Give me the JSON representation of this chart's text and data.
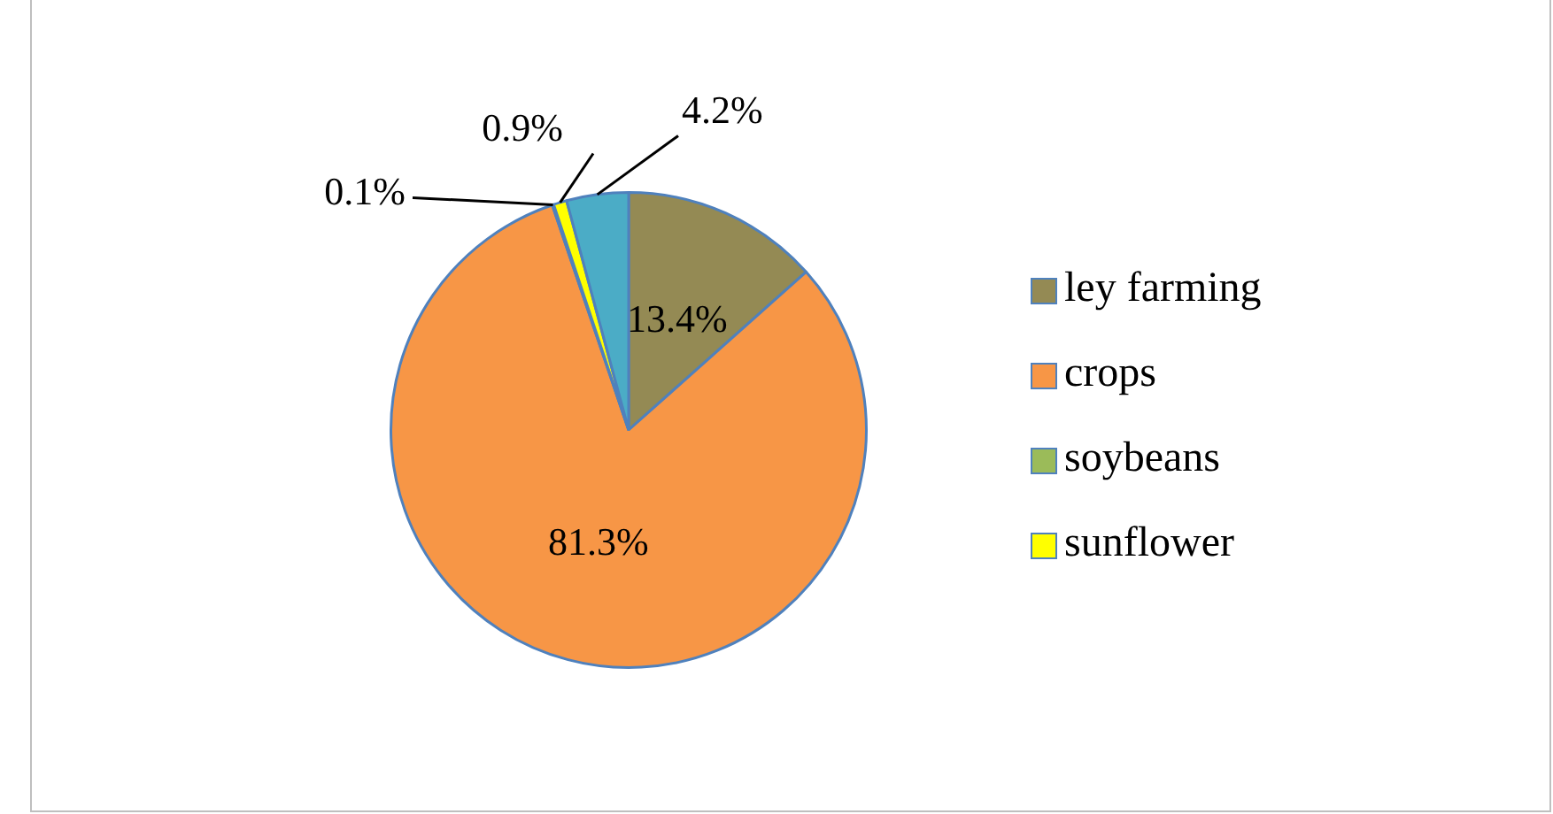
{
  "chart_data": {
    "type": "pie",
    "categories": [
      "ley farming",
      "crops",
      "soybeans",
      "sunflower",
      null
    ],
    "values": [
      13.4,
      81.3,
      0.1,
      0.9,
      4.2
    ],
    "colors": [
      "#948a54",
      "#f79646",
      "#9bbb59",
      "#ffff00",
      "#4bacc6"
    ],
    "value_labels": [
      "13.4%",
      "81.3%",
      "0.1%",
      "0.9%",
      "4.2%"
    ],
    "legend": "right"
  }
}
